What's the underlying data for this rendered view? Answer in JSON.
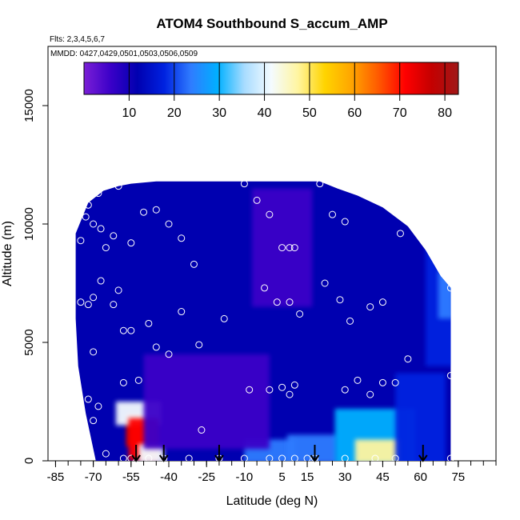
{
  "chart_data": {
    "type": "heatmap",
    "title": "ATOM4 Southbound S_accum_AMP",
    "subtitle_flights": "Flts: 2,3,4,5,6,7",
    "subtitle_dates": "MMDD: 0427,0429,0501,0503,0506,0509",
    "xlabel": "Latitude (deg N)",
    "ylabel": "Altitude (m)",
    "xlim": [
      -88,
      90
    ],
    "ylim": [
      0,
      17500
    ],
    "x_ticks": [
      -85,
      -70,
      -55,
      -40,
      -25,
      -10,
      5,
      15,
      30,
      45,
      60,
      75
    ],
    "x_tick_labels": [
      "-85",
      "-70",
      "-55",
      "-40",
      "-25",
      "-10",
      "5",
      "15",
      "30",
      "45",
      "60",
      "75"
    ],
    "y_ticks": [
      0,
      5000,
      10000,
      15000
    ],
    "y_tick_labels": [
      "0",
      "5000",
      "10000",
      "15000"
    ],
    "colorbar": {
      "min": 0,
      "max": 83,
      "ticks": [
        10,
        20,
        30,
        40,
        50,
        60,
        70,
        80
      ],
      "tick_labels": [
        "10",
        "20",
        "30",
        "40",
        "50",
        "60",
        "70",
        "80"
      ],
      "colors": [
        "#7b1fd6",
        "#3a00c8",
        "#0000b0",
        "#0022e0",
        "#2f7cff",
        "#00b0ff",
        "#a8dcff",
        "#f4fbff",
        "#fff5a0",
        "#ffd400",
        "#ffa500",
        "#ff5a00",
        "#ff0000",
        "#c40000",
        "#a01818"
      ]
    },
    "coverage_envelope": [
      {
        "lat": -77,
        "alt_top": 9600
      },
      {
        "lat": -72,
        "alt_top": 10900
      },
      {
        "lat": -66,
        "alt_top": 11400
      },
      {
        "lat": -60,
        "alt_top": 11600
      },
      {
        "lat": -55,
        "alt_top": 11700
      },
      {
        "lat": -45,
        "alt_top": 11800
      },
      {
        "lat": -25,
        "alt_top": 11800
      },
      {
        "lat": 0,
        "alt_top": 11800
      },
      {
        "lat": 20,
        "alt_top": 11800
      },
      {
        "lat": 27,
        "alt_top": 11500
      },
      {
        "lat": 35,
        "alt_top": 11200
      },
      {
        "lat": 45,
        "alt_top": 10700
      },
      {
        "lat": 55,
        "alt_top": 9900
      },
      {
        "lat": 62,
        "alt_top": 8900
      },
      {
        "lat": 68,
        "alt_top": 7800
      },
      {
        "lat": 72,
        "alt_top": 7300
      }
    ],
    "coverage_bottom_left": [
      {
        "lat": -77,
        "alt": 9600
      },
      {
        "lat": -77,
        "alt": 6000
      },
      {
        "lat": -76,
        "alt": 4000
      },
      {
        "lat": -73,
        "alt": 2000
      },
      {
        "lat": -69,
        "alt": 0
      }
    ],
    "features": [
      {
        "lat": -52,
        "alt": 1300,
        "value": 80,
        "rx": 5,
        "ry": 700
      },
      {
        "lat": -52,
        "alt": 2000,
        "value": 40,
        "rx": 9,
        "ry": 500
      },
      {
        "lat": -50,
        "alt": 900,
        "value": 70,
        "rx": 6,
        "ry": 900
      },
      {
        "lat": -47,
        "alt": 300,
        "value": 40,
        "rx": 5,
        "ry": 400
      },
      {
        "lat": 0,
        "alt": 400,
        "value": 26,
        "rx": 10,
        "ry": 500
      },
      {
        "lat": 17,
        "alt": 500,
        "value": 25,
        "rx": 10,
        "ry": 600
      },
      {
        "lat": 42,
        "alt": 800,
        "value": 30,
        "rx": 16,
        "ry": 1400
      },
      {
        "lat": 43,
        "alt": 400,
        "value": 45,
        "rx": 9,
        "ry": 500
      },
      {
        "lat": 60,
        "alt": 1500,
        "value": 20,
        "rx": 10,
        "ry": 2200
      },
      {
        "lat": 68,
        "alt": 6500,
        "value": 18,
        "rx": 6,
        "ry": 2500
      },
      {
        "lat": 70,
        "alt": 7000,
        "value": 24,
        "rx": 3,
        "ry": 1000
      },
      {
        "lat": -25,
        "alt": 2500,
        "value": 6,
        "rx": 25,
        "ry": 2000
      },
      {
        "lat": 5,
        "alt": 9000,
        "value": 5,
        "rx": 12,
        "ry": 2500
      }
    ],
    "background_value": 10,
    "sample_points": [
      {
        "lat": -85,
        "alt": 9500
      },
      {
        "lat": -80,
        "alt": 9300
      },
      {
        "lat": -75,
        "alt": 9300
      },
      {
        "lat": -73,
        "alt": 10300
      },
      {
        "lat": -72,
        "alt": 10800
      },
      {
        "lat": -70,
        "alt": 10000
      },
      {
        "lat": -68,
        "alt": 11300
      },
      {
        "lat": -67,
        "alt": 9800
      },
      {
        "lat": -60,
        "alt": 11600
      },
      {
        "lat": -65,
        "alt": 9000
      },
      {
        "lat": -62,
        "alt": 9500
      },
      {
        "lat": -55,
        "alt": 9200
      },
      {
        "lat": -50,
        "alt": 10500
      },
      {
        "lat": -45,
        "alt": 10600
      },
      {
        "lat": -40,
        "alt": 10000
      },
      {
        "lat": -35,
        "alt": 9400
      },
      {
        "lat": -30,
        "alt": 8300
      },
      {
        "lat": -75,
        "alt": 6700
      },
      {
        "lat": -72,
        "alt": 6600
      },
      {
        "lat": -70,
        "alt": 6900
      },
      {
        "lat": -67,
        "alt": 7600
      },
      {
        "lat": -62,
        "alt": 6600
      },
      {
        "lat": -60,
        "alt": 7200
      },
      {
        "lat": -58,
        "alt": 5500
      },
      {
        "lat": -55,
        "alt": 5500
      },
      {
        "lat": -48,
        "alt": 5800
      },
      {
        "lat": -45,
        "alt": 4800
      },
      {
        "lat": -40,
        "alt": 4500
      },
      {
        "lat": -35,
        "alt": 6300
      },
      {
        "lat": -28,
        "alt": 4900
      },
      {
        "lat": -80,
        "alt": 4300
      },
      {
        "lat": -70,
        "alt": 4600
      },
      {
        "lat": -58,
        "alt": 3300
      },
      {
        "lat": -52,
        "alt": 3400
      },
      {
        "lat": -72,
        "alt": 2600
      },
      {
        "lat": -68,
        "alt": 2300
      },
      {
        "lat": -70,
        "alt": 1700
      },
      {
        "lat": -65,
        "alt": 300
      },
      {
        "lat": -58,
        "alt": 100
      },
      {
        "lat": -55,
        "alt": 100
      },
      {
        "lat": -48,
        "alt": 100
      },
      {
        "lat": -42,
        "alt": 100
      },
      {
        "lat": -32,
        "alt": 100
      },
      {
        "lat": -27,
        "alt": 1300
      },
      {
        "lat": -20,
        "alt": 100
      },
      {
        "lat": -18,
        "alt": 6000
      },
      {
        "lat": -10,
        "alt": 11700
      },
      {
        "lat": -5,
        "alt": 11000
      },
      {
        "lat": 0,
        "alt": 10400
      },
      {
        "lat": 5,
        "alt": 9000
      },
      {
        "lat": 8,
        "alt": 9000
      },
      {
        "lat": 10,
        "alt": 9000
      },
      {
        "lat": -2,
        "alt": 7300
      },
      {
        "lat": 3,
        "alt": 6700
      },
      {
        "lat": 8,
        "alt": 6700
      },
      {
        "lat": 12,
        "alt": 6200
      },
      {
        "lat": -8,
        "alt": 3000
      },
      {
        "lat": 0,
        "alt": 3000
      },
      {
        "lat": 5,
        "alt": 3100
      },
      {
        "lat": 8,
        "alt": 2800
      },
      {
        "lat": 10,
        "alt": 3200
      },
      {
        "lat": 20,
        "alt": 11700
      },
      {
        "lat": 25,
        "alt": 10400
      },
      {
        "lat": 30,
        "alt": 10100
      },
      {
        "lat": 22,
        "alt": 7500
      },
      {
        "lat": 28,
        "alt": 6800
      },
      {
        "lat": 32,
        "alt": 5900
      },
      {
        "lat": 40,
        "alt": 6500
      },
      {
        "lat": 45,
        "alt": 6700
      },
      {
        "lat": 52,
        "alt": 9600
      },
      {
        "lat": 55,
        "alt": 4300
      },
      {
        "lat": 35,
        "alt": 3400
      },
      {
        "lat": 30,
        "alt": 3000
      },
      {
        "lat": 40,
        "alt": 2800
      },
      {
        "lat": 45,
        "alt": 3300
      },
      {
        "lat": 50,
        "alt": 3300
      },
      {
        "lat": 72,
        "alt": 7300
      },
      {
        "lat": 72,
        "alt": 3600
      },
      {
        "lat": -10,
        "alt": 100
      },
      {
        "lat": 0,
        "alt": 100
      },
      {
        "lat": 5,
        "alt": 100
      },
      {
        "lat": 10,
        "alt": 100
      },
      {
        "lat": 15,
        "alt": 100
      },
      {
        "lat": 18,
        "alt": 100
      },
      {
        "lat": 30,
        "alt": 100
      },
      {
        "lat": 42,
        "alt": 100
      },
      {
        "lat": 50,
        "alt": 100
      },
      {
        "lat": 72,
        "alt": 100
      }
    ],
    "arrows_lat": [
      -53,
      -42,
      -20,
      18,
      61
    ]
  }
}
